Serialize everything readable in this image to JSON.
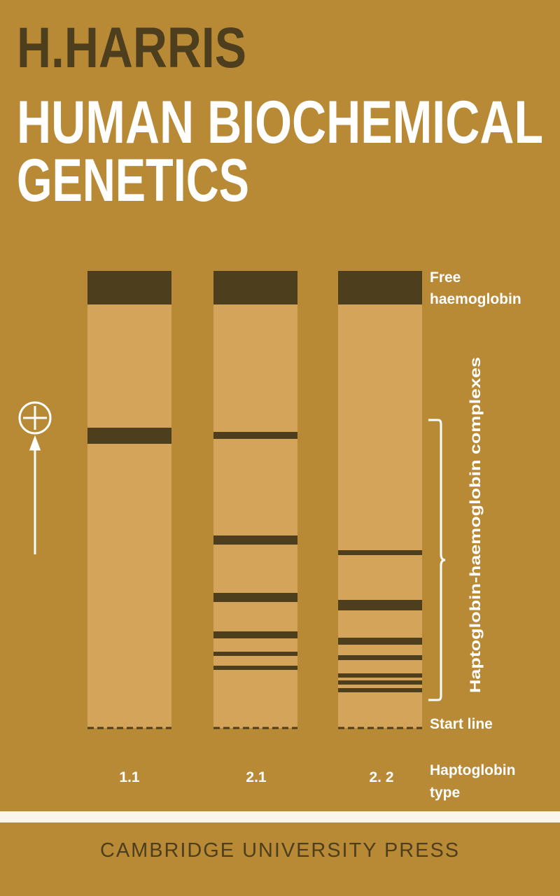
{
  "cover": {
    "author": "H.HARRIS",
    "title": [
      "HUMAN BIOCHEMICAL",
      "GENETICS"
    ],
    "figure": {
      "free_label": [
        "Free",
        "haemoglobin"
      ],
      "complex_label": "Haptoglobin-haemoglobin complexes",
      "start_label": "Start line",
      "lanes": [
        "1.1",
        "2.1",
        "2. 2"
      ],
      "type_label": [
        "Haptoglobin",
        "type"
      ]
    },
    "publisher": "CAMBRIDGE UNIVERSITY PRESS"
  }
}
